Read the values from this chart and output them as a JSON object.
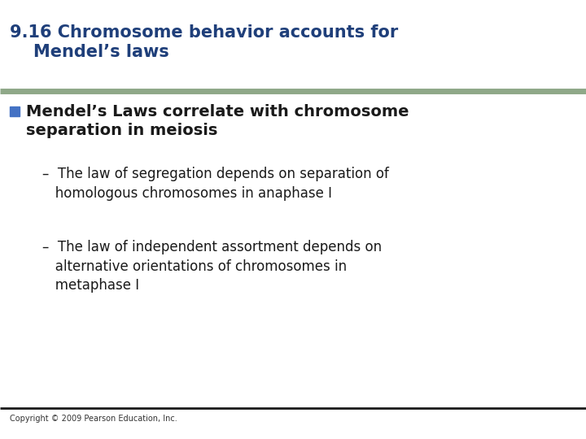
{
  "title_line1": "9.16 Chromosome behavior accounts for",
  "title_line2": "    Mendel’s laws",
  "title_color": "#1F3F7A",
  "title_fontsize": 15,
  "separator_color_top": "#8FA888",
  "separator_color_bottom": "#1a1a1a",
  "bg_color": "#FFFFFF",
  "bullet_color": "#4472C4",
  "bullet_text_line1": "Mendel’s Laws correlate with chromosome",
  "bullet_text_line2": "separation in meiosis",
  "bullet_fontsize": 14,
  "sub_bullet1_line1": "–  The law of segregation depends on separation of",
  "sub_bullet1_line2": "   homologous chromosomes in anaphase I",
  "sub_bullet2_line1": "–  The law of independent assortment depends on",
  "sub_bullet2_line2": "   alternative orientations of chromosomes in",
  "sub_bullet2_line3": "   metaphase I",
  "sub_fontsize": 12,
  "sub_text_color": "#1a1a1a",
  "copyright": "Copyright © 2009 Pearson Education, Inc.",
  "copyright_fontsize": 7,
  "copyright_color": "#333333"
}
